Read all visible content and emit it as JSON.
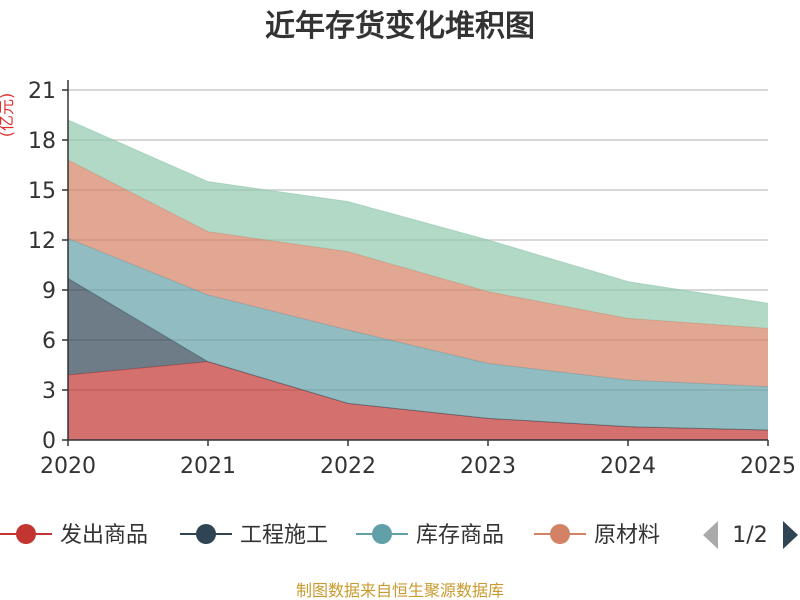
{
  "chart_data": {
    "type": "area",
    "stacked": true,
    "title": "近年存货变化堆积图",
    "unit": "(亿元)",
    "x": [
      "2020",
      "2021",
      "2022",
      "2023",
      "2024",
      "2025"
    ],
    "series": [
      {
        "name": "发出商品",
        "color": "#c23531",
        "values": [
          3.9,
          4.7,
          2.2,
          1.3,
          0.8,
          0.6
        ]
      },
      {
        "name": "工程施工",
        "color": "#2f4554",
        "values": [
          5.8,
          0.0,
          0.0,
          0.0,
          0.0,
          0.0
        ]
      },
      {
        "name": "库存商品",
        "color": "#61a0a8",
        "values": [
          2.4,
          4.0,
          4.4,
          3.3,
          2.8,
          2.6
        ]
      },
      {
        "name": "原材料",
        "color": "#d48265",
        "values": [
          4.7,
          3.8,
          4.7,
          4.3,
          3.7,
          3.5
        ]
      },
      {
        "name": "",
        "color": "#91c7ae",
        "values": [
          2.4,
          3.0,
          3.0,
          3.1,
          2.2,
          1.5
        ]
      }
    ],
    "ylim": [
      0,
      21
    ],
    "yticks": [
      0,
      3,
      6,
      9,
      12,
      15,
      18,
      21
    ],
    "grid": true,
    "legend": {
      "position": "bottom",
      "visible_items": [
        "发出商品",
        "工程施工",
        "库存商品",
        "原材料"
      ],
      "page": "1/2"
    },
    "source": "制图数据来自恒生聚源数据库"
  }
}
